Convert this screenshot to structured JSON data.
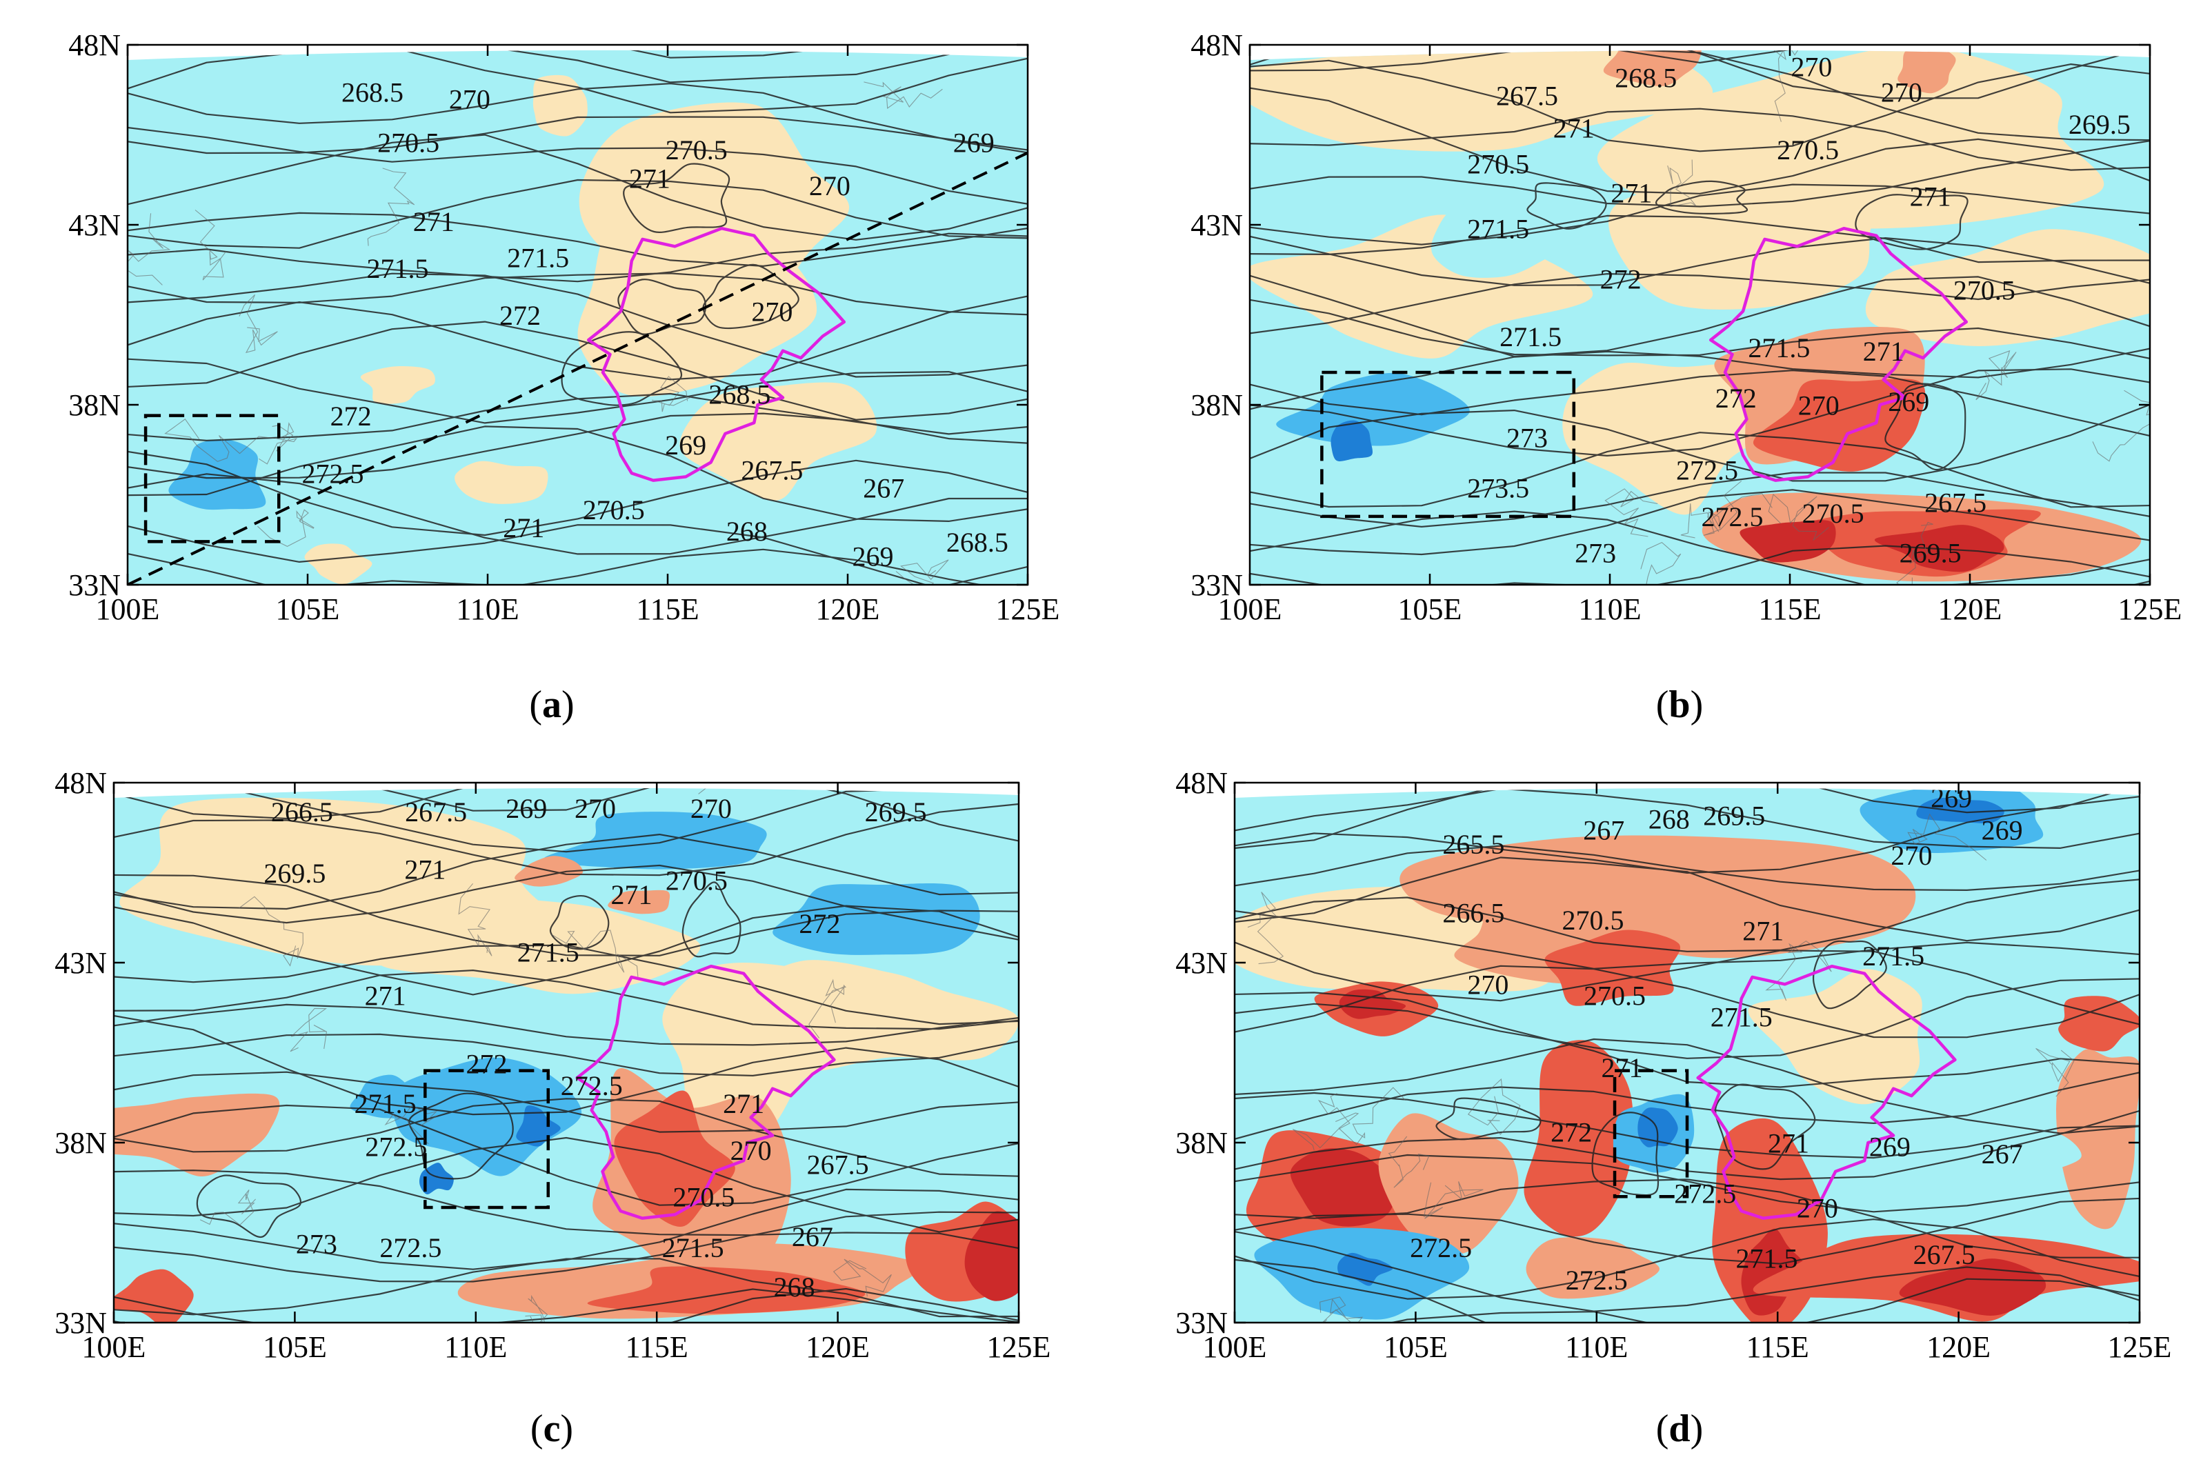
{
  "map_data": {
    "type": "contour-map",
    "lon_range": [
      100,
      125
    ],
    "lat_range": [
      33,
      48
    ],
    "lon_ticks": [
      "100E",
      "105E",
      "110E",
      "115E",
      "120E",
      "125E"
    ],
    "lat_ticks": [
      "33N",
      "38N",
      "43N",
      "48N"
    ],
    "colors": {
      "light_blue": "#a6f0f5",
      "cream": "#fbe5b8",
      "mid_blue": "#48b8ee",
      "dark_blue": "#1e7fd6",
      "light_red": "#f2a07c",
      "red": "#e95a45",
      "dark_red": "#cc2a2a",
      "boundary": "#e020e0",
      "contour": "#222222"
    },
    "panels": [
      {
        "caption": "a",
        "box": [
          [
            100.5,
            34.2
          ],
          [
            104.2,
            37.7
          ]
        ],
        "dashed_line": [
          [
            100,
            33
          ],
          [
            125,
            45
          ]
        ],
        "labels": [
          {
            "lon": 106.8,
            "lat": 46.6,
            "text": "268.5"
          },
          {
            "lon": 109.5,
            "lat": 46.4,
            "text": "270"
          },
          {
            "lon": 107.8,
            "lat": 45.2,
            "text": "270.5"
          },
          {
            "lon": 115.8,
            "lat": 45.0,
            "text": "270.5"
          },
          {
            "lon": 108.5,
            "lat": 43.0,
            "text": "271"
          },
          {
            "lon": 114.5,
            "lat": 44.2,
            "text": "271"
          },
          {
            "lon": 119.5,
            "lat": 44.0,
            "text": "270"
          },
          {
            "lon": 123.5,
            "lat": 45.2,
            "text": "269"
          },
          {
            "lon": 107.5,
            "lat": 41.7,
            "text": "271.5"
          },
          {
            "lon": 111.4,
            "lat": 42.0,
            "text": "271.5"
          },
          {
            "lon": 110.9,
            "lat": 40.4,
            "text": "272"
          },
          {
            "lon": 117.9,
            "lat": 40.5,
            "text": "270"
          },
          {
            "lon": 106.2,
            "lat": 37.6,
            "text": "272"
          },
          {
            "lon": 117.0,
            "lat": 38.2,
            "text": "268.5"
          },
          {
            "lon": 105.7,
            "lat": 36.0,
            "text": "272.5"
          },
          {
            "lon": 115.5,
            "lat": 36.8,
            "text": "269"
          },
          {
            "lon": 117.9,
            "lat": 36.1,
            "text": "267.5"
          },
          {
            "lon": 121.0,
            "lat": 35.6,
            "text": "267"
          },
          {
            "lon": 113.5,
            "lat": 35.0,
            "text": "270.5"
          },
          {
            "lon": 111.0,
            "lat": 34.5,
            "text": "271"
          },
          {
            "lon": 117.2,
            "lat": 34.4,
            "text": "268"
          },
          {
            "lon": 120.7,
            "lat": 33.7,
            "text": "269"
          },
          {
            "lon": 123.6,
            "lat": 34.1,
            "text": "268.5"
          }
        ]
      },
      {
        "caption": "b",
        "box": [
          [
            102,
            34.9
          ],
          [
            109,
            38.9
          ]
        ],
        "dashed_line": null,
        "labels": [
          {
            "lon": 111.0,
            "lat": 47.0,
            "text": "268.5"
          },
          {
            "lon": 115.6,
            "lat": 47.3,
            "text": "270"
          },
          {
            "lon": 118.1,
            "lat": 46.6,
            "text": "270"
          },
          {
            "lon": 107.7,
            "lat": 46.5,
            "text": "267.5"
          },
          {
            "lon": 123.6,
            "lat": 45.7,
            "text": "269.5"
          },
          {
            "lon": 109.0,
            "lat": 45.6,
            "text": "271"
          },
          {
            "lon": 106.9,
            "lat": 44.6,
            "text": "270.5"
          },
          {
            "lon": 115.5,
            "lat": 45.0,
            "text": "270.5"
          },
          {
            "lon": 110.6,
            "lat": 43.8,
            "text": "271"
          },
          {
            "lon": 118.9,
            "lat": 43.7,
            "text": "271"
          },
          {
            "lon": 106.9,
            "lat": 42.8,
            "text": "271.5"
          },
          {
            "lon": 110.3,
            "lat": 41.4,
            "text": "272"
          },
          {
            "lon": 120.4,
            "lat": 41.1,
            "text": "270.5"
          },
          {
            "lon": 107.8,
            "lat": 39.8,
            "text": "271.5"
          },
          {
            "lon": 114.7,
            "lat": 39.5,
            "text": "271.5"
          },
          {
            "lon": 117.6,
            "lat": 39.4,
            "text": "271"
          },
          {
            "lon": 113.5,
            "lat": 38.1,
            "text": "272"
          },
          {
            "lon": 115.8,
            "lat": 37.9,
            "text": "270"
          },
          {
            "lon": 118.3,
            "lat": 38.0,
            "text": "269"
          },
          {
            "lon": 107.7,
            "lat": 37.0,
            "text": "273"
          },
          {
            "lon": 112.7,
            "lat": 36.1,
            "text": "272.5"
          },
          {
            "lon": 106.9,
            "lat": 35.6,
            "text": "273.5"
          },
          {
            "lon": 113.4,
            "lat": 34.8,
            "text": "272.5"
          },
          {
            "lon": 116.2,
            "lat": 34.9,
            "text": "270.5"
          },
          {
            "lon": 119.6,
            "lat": 35.2,
            "text": "267.5"
          },
          {
            "lon": 109.6,
            "lat": 33.8,
            "text": "273"
          },
          {
            "lon": 118.9,
            "lat": 33.8,
            "text": "269.5"
          }
        ]
      },
      {
        "caption": "c",
        "box": [
          [
            108.6,
            36.2
          ],
          [
            112,
            40
          ]
        ],
        "dashed_line": null,
        "labels": [
          {
            "lon": 105.2,
            "lat": 47.1,
            "text": "266.5"
          },
          {
            "lon": 108.9,
            "lat": 47.1,
            "text": "267.5"
          },
          {
            "lon": 111.4,
            "lat": 47.2,
            "text": "269"
          },
          {
            "lon": 113.3,
            "lat": 47.2,
            "text": "270"
          },
          {
            "lon": 116.5,
            "lat": 47.2,
            "text": "270"
          },
          {
            "lon": 121.6,
            "lat": 47.1,
            "text": "269.5"
          },
          {
            "lon": 105.0,
            "lat": 45.4,
            "text": "269.5"
          },
          {
            "lon": 108.6,
            "lat": 45.5,
            "text": "271"
          },
          {
            "lon": 114.3,
            "lat": 44.8,
            "text": "271"
          },
          {
            "lon": 116.1,
            "lat": 45.2,
            "text": "270.5"
          },
          {
            "lon": 119.5,
            "lat": 44.0,
            "text": "272"
          },
          {
            "lon": 112.0,
            "lat": 43.2,
            "text": "271.5"
          },
          {
            "lon": 107.5,
            "lat": 42.0,
            "text": "271"
          },
          {
            "lon": 110.3,
            "lat": 40.1,
            "text": "272"
          },
          {
            "lon": 113.2,
            "lat": 39.5,
            "text": "272.5"
          },
          {
            "lon": 107.5,
            "lat": 39.0,
            "text": "271.5"
          },
          {
            "lon": 117.4,
            "lat": 39.0,
            "text": "271"
          },
          {
            "lon": 107.8,
            "lat": 37.8,
            "text": "272.5"
          },
          {
            "lon": 117.6,
            "lat": 37.7,
            "text": "270"
          },
          {
            "lon": 120.0,
            "lat": 37.3,
            "text": "267.5"
          },
          {
            "lon": 116.3,
            "lat": 36.4,
            "text": "270.5"
          },
          {
            "lon": 119.3,
            "lat": 35.3,
            "text": "267"
          },
          {
            "lon": 105.6,
            "lat": 35.1,
            "text": "273"
          },
          {
            "lon": 108.2,
            "lat": 35.0,
            "text": "272.5"
          },
          {
            "lon": 116.0,
            "lat": 35.0,
            "text": "271.5"
          },
          {
            "lon": 118.8,
            "lat": 33.9,
            "text": "268"
          }
        ]
      },
      {
        "caption": "d",
        "box": [
          [
            110.5,
            36.5
          ],
          [
            112.5,
            40
          ]
        ],
        "dashed_line": null,
        "labels": [
          {
            "lon": 119.8,
            "lat": 47.5,
            "text": "269"
          },
          {
            "lon": 121.2,
            "lat": 46.6,
            "text": "269"
          },
          {
            "lon": 113.8,
            "lat": 47.0,
            "text": "269.5"
          },
          {
            "lon": 112.0,
            "lat": 46.9,
            "text": "268"
          },
          {
            "lon": 110.2,
            "lat": 46.6,
            "text": "267"
          },
          {
            "lon": 106.6,
            "lat": 46.2,
            "text": "265.5"
          },
          {
            "lon": 118.7,
            "lat": 45.9,
            "text": "270"
          },
          {
            "lon": 106.6,
            "lat": 44.3,
            "text": "266.5"
          },
          {
            "lon": 109.9,
            "lat": 44.1,
            "text": "270.5"
          },
          {
            "lon": 114.6,
            "lat": 43.8,
            "text": "271"
          },
          {
            "lon": 118.2,
            "lat": 43.1,
            "text": "271.5"
          },
          {
            "lon": 107.0,
            "lat": 42.3,
            "text": "270"
          },
          {
            "lon": 110.5,
            "lat": 42.0,
            "text": "270.5"
          },
          {
            "lon": 114.0,
            "lat": 41.4,
            "text": "271.5"
          },
          {
            "lon": 110.7,
            "lat": 40.0,
            "text": "271"
          },
          {
            "lon": 109.3,
            "lat": 38.2,
            "text": "272"
          },
          {
            "lon": 115.3,
            "lat": 37.9,
            "text": "271"
          },
          {
            "lon": 118.1,
            "lat": 37.8,
            "text": "269"
          },
          {
            "lon": 121.2,
            "lat": 37.6,
            "text": "267"
          },
          {
            "lon": 113.0,
            "lat": 36.5,
            "text": "272.5"
          },
          {
            "lon": 116.1,
            "lat": 36.1,
            "text": "270"
          },
          {
            "lon": 105.7,
            "lat": 35.0,
            "text": "272.5"
          },
          {
            "lon": 114.7,
            "lat": 34.7,
            "text": "271.5"
          },
          {
            "lon": 119.6,
            "lat": 34.8,
            "text": "267.5"
          },
          {
            "lon": 110.0,
            "lat": 34.1,
            "text": "272.5"
          }
        ]
      }
    ]
  }
}
